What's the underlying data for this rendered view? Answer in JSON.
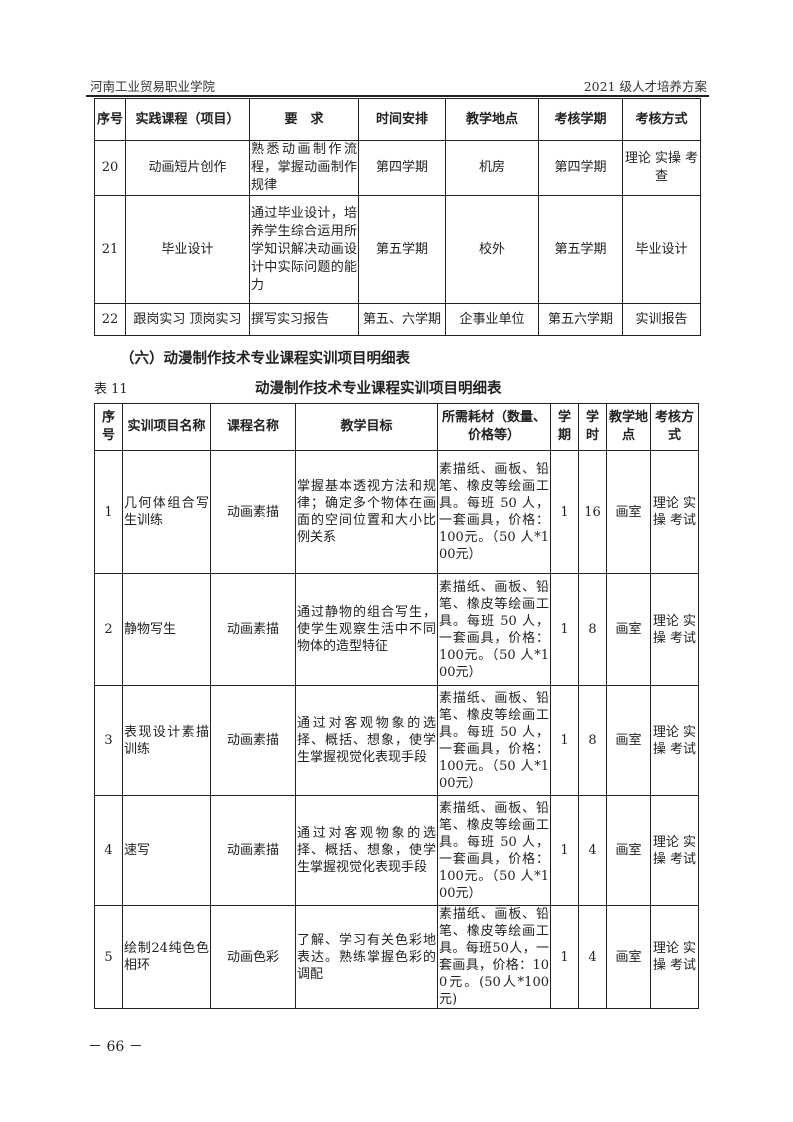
{
  "header": {
    "left": "河南工业贸易职业学院",
    "right": "2021 级人才培养方案"
  },
  "table1": {
    "headers": [
      "序号",
      "实践课程（项目）",
      "要　求",
      "时间安排",
      "教学地点",
      "考核学期",
      "考核方式"
    ],
    "rows": [
      [
        "20",
        "动画短片创作",
        "熟悉动画制作流程，掌握动画制作规律",
        "第四学期",
        "机房",
        "第四学期",
        "理论 实操 考查"
      ],
      [
        "21",
        "毕业设计",
        "通过毕业设计，培养学生综合运用所学知识解决动画设计中实际问题的能力",
        "第五学期",
        "校外",
        "第五学期",
        "毕业设计"
      ],
      [
        "22",
        "跟岗实习 顶岗实习",
        "撰写实习报告",
        "第五、六学期",
        "企事业单位",
        "第五六学期",
        "实训报告"
      ]
    ]
  },
  "section_title": "（六）动漫制作技术专业课程实训项目明细表",
  "table2": {
    "caption": "表 11",
    "title": "动漫制作技术专业课程实训项目明细表",
    "headers": [
      "序号",
      "实训项目名称",
      "课程名称",
      "教学目标",
      "所需耗材（数量、价格等）",
      "学期",
      "学时",
      "教学地点",
      "考核方式"
    ],
    "rows": [
      [
        "1",
        "几何体组合写生训练",
        "动画素描",
        "掌握基本透视方法和规律；确定多个物体在画面的空间位置和大小比例关系",
        "素描纸、画板、铅笔、橡皮等绘画工具。每班 50 人，一套画具，价格：100元。（50 人*100元）",
        "1",
        "16",
        "画室",
        "理论 实操 考试"
      ],
      [
        "2",
        "静物写生",
        "动画素描",
        "通过静物的组合写生，使学生观察生活中不同物体的造型特征",
        "素描纸、画板、铅笔、橡皮等绘画工具。每班 50 人，一套画具，价格：100元。（50 人*100元）",
        "1",
        "8",
        "画室",
        "理论 实操 考试"
      ],
      [
        "3",
        "表现设计素描训练",
        "动画素描",
        "通过对客观物象的选择、概括、想象，使学生掌握视觉化表现手段",
        "素描纸、画板、铅笔、橡皮等绘画工具。每班 50 人，一套画具，价格：100元。（50 人*100元）",
        "1",
        "8",
        "画室",
        "理论 实操 考试"
      ],
      [
        "4",
        "速写",
        "动画素描",
        "通过对客观物象的选择、概括、想象，使学生掌握视觉化表现手段",
        "素描纸、画板、铅笔、橡皮等绘画工具。每班 50 人，一套画具，价格：100元。（50 人*100元）",
        "1",
        "4",
        "画室",
        "理论 实操 考试"
      ],
      [
        "5",
        "绘制24纯色色相环",
        "动画色彩",
        "了解、学习有关色彩地表达。熟练掌握色彩的调配",
        "素描纸、画板、铅笔、橡皮等绘画工具。每班50人，一套画具，价格：100元。(50人*100元)",
        "1",
        "4",
        "画室",
        "理论 实操 考试"
      ]
    ]
  },
  "footer": {
    "page_number": "－ 66 －"
  }
}
